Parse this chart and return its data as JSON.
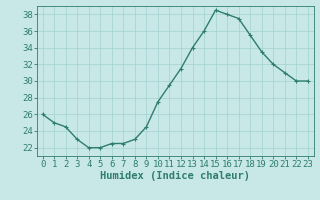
{
  "x": [
    0,
    1,
    2,
    3,
    4,
    5,
    6,
    7,
    8,
    9,
    10,
    11,
    12,
    13,
    14,
    15,
    16,
    17,
    18,
    19,
    20,
    21,
    22,
    23
  ],
  "y": [
    26,
    25,
    24.5,
    23,
    22,
    22,
    22.5,
    22.5,
    23,
    24.5,
    27.5,
    29.5,
    31.5,
    34,
    36,
    38.5,
    38,
    37.5,
    35.5,
    33.5,
    32,
    31,
    30,
    30
  ],
  "line_color": "#2e7d6e",
  "marker": "+",
  "background_color": "#c8e8e8",
  "grid_color": "#aad4d4",
  "xlabel": "Humidex (Indice chaleur)",
  "ylim": [
    21.0,
    39.0
  ],
  "xlim": [
    -0.5,
    23.5
  ],
  "yticks": [
    22,
    24,
    26,
    28,
    30,
    32,
    34,
    36,
    38
  ],
  "xticks": [
    0,
    1,
    2,
    3,
    4,
    5,
    6,
    7,
    8,
    9,
    10,
    11,
    12,
    13,
    14,
    15,
    16,
    17,
    18,
    19,
    20,
    21,
    22,
    23
  ],
  "xlabel_fontsize": 7.5,
  "tick_fontsize": 6.5,
  "linewidth": 1.0,
  "markersize": 3.5
}
